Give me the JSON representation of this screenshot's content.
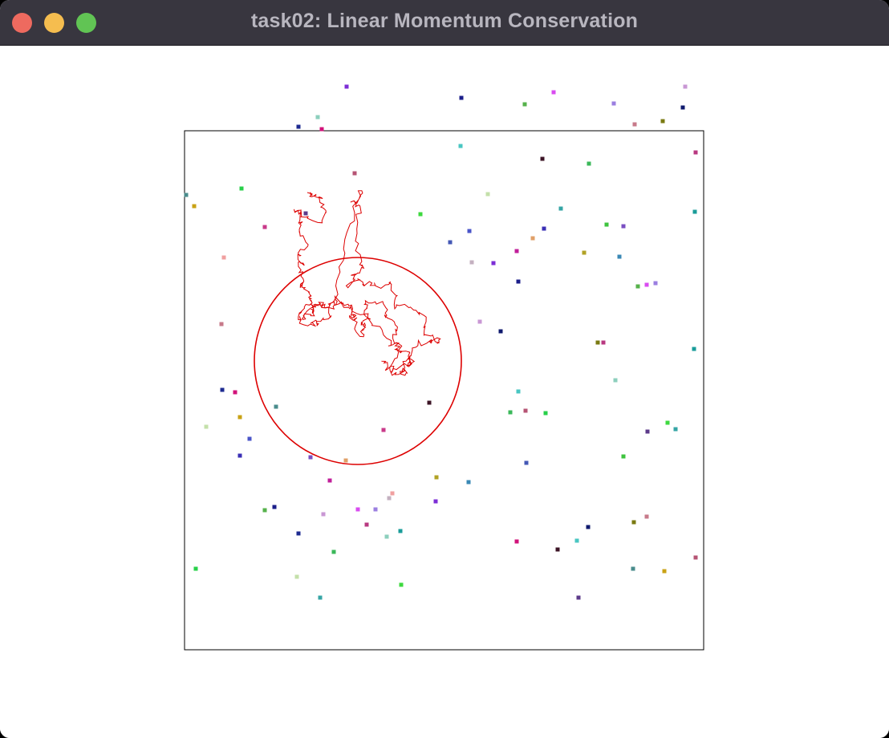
{
  "window": {
    "title": "task02: Linear Momentum Conservation",
    "controls": [
      "close",
      "minimize",
      "maximize"
    ]
  },
  "simulation": {
    "trajectory_color": "#dd0000",
    "circle_color": "#dd0000",
    "particle_colors": [
      "#7c2ed6",
      "#1b1e8a",
      "#56b24b",
      "#d94cf0",
      "#9b7fe0",
      "#c997d4",
      "#0f1a6e",
      "#c77a8a",
      "#7a7a12",
      "#b83880",
      "#1a9c99",
      "#8ccfbd",
      "#1d2a90",
      "#d1127a",
      "#49c6c2",
      "#3c1426",
      "#3bb85a",
      "#b65474",
      "#28d04a",
      "#4a8c8c",
      "#c9a215",
      "#c4e0aa",
      "#3ed93f",
      "#35a5a5",
      "#5c3a8a",
      "#c93a8a",
      "#4a55c9",
      "#3a2fb5",
      "#3ec33e",
      "#7a4fc2",
      "#e0a068",
      "#4458b5",
      "#c11f9a",
      "#b1a225",
      "#3a88b5",
      "#f0a0a0",
      "#c4b0c0"
    ]
  }
}
